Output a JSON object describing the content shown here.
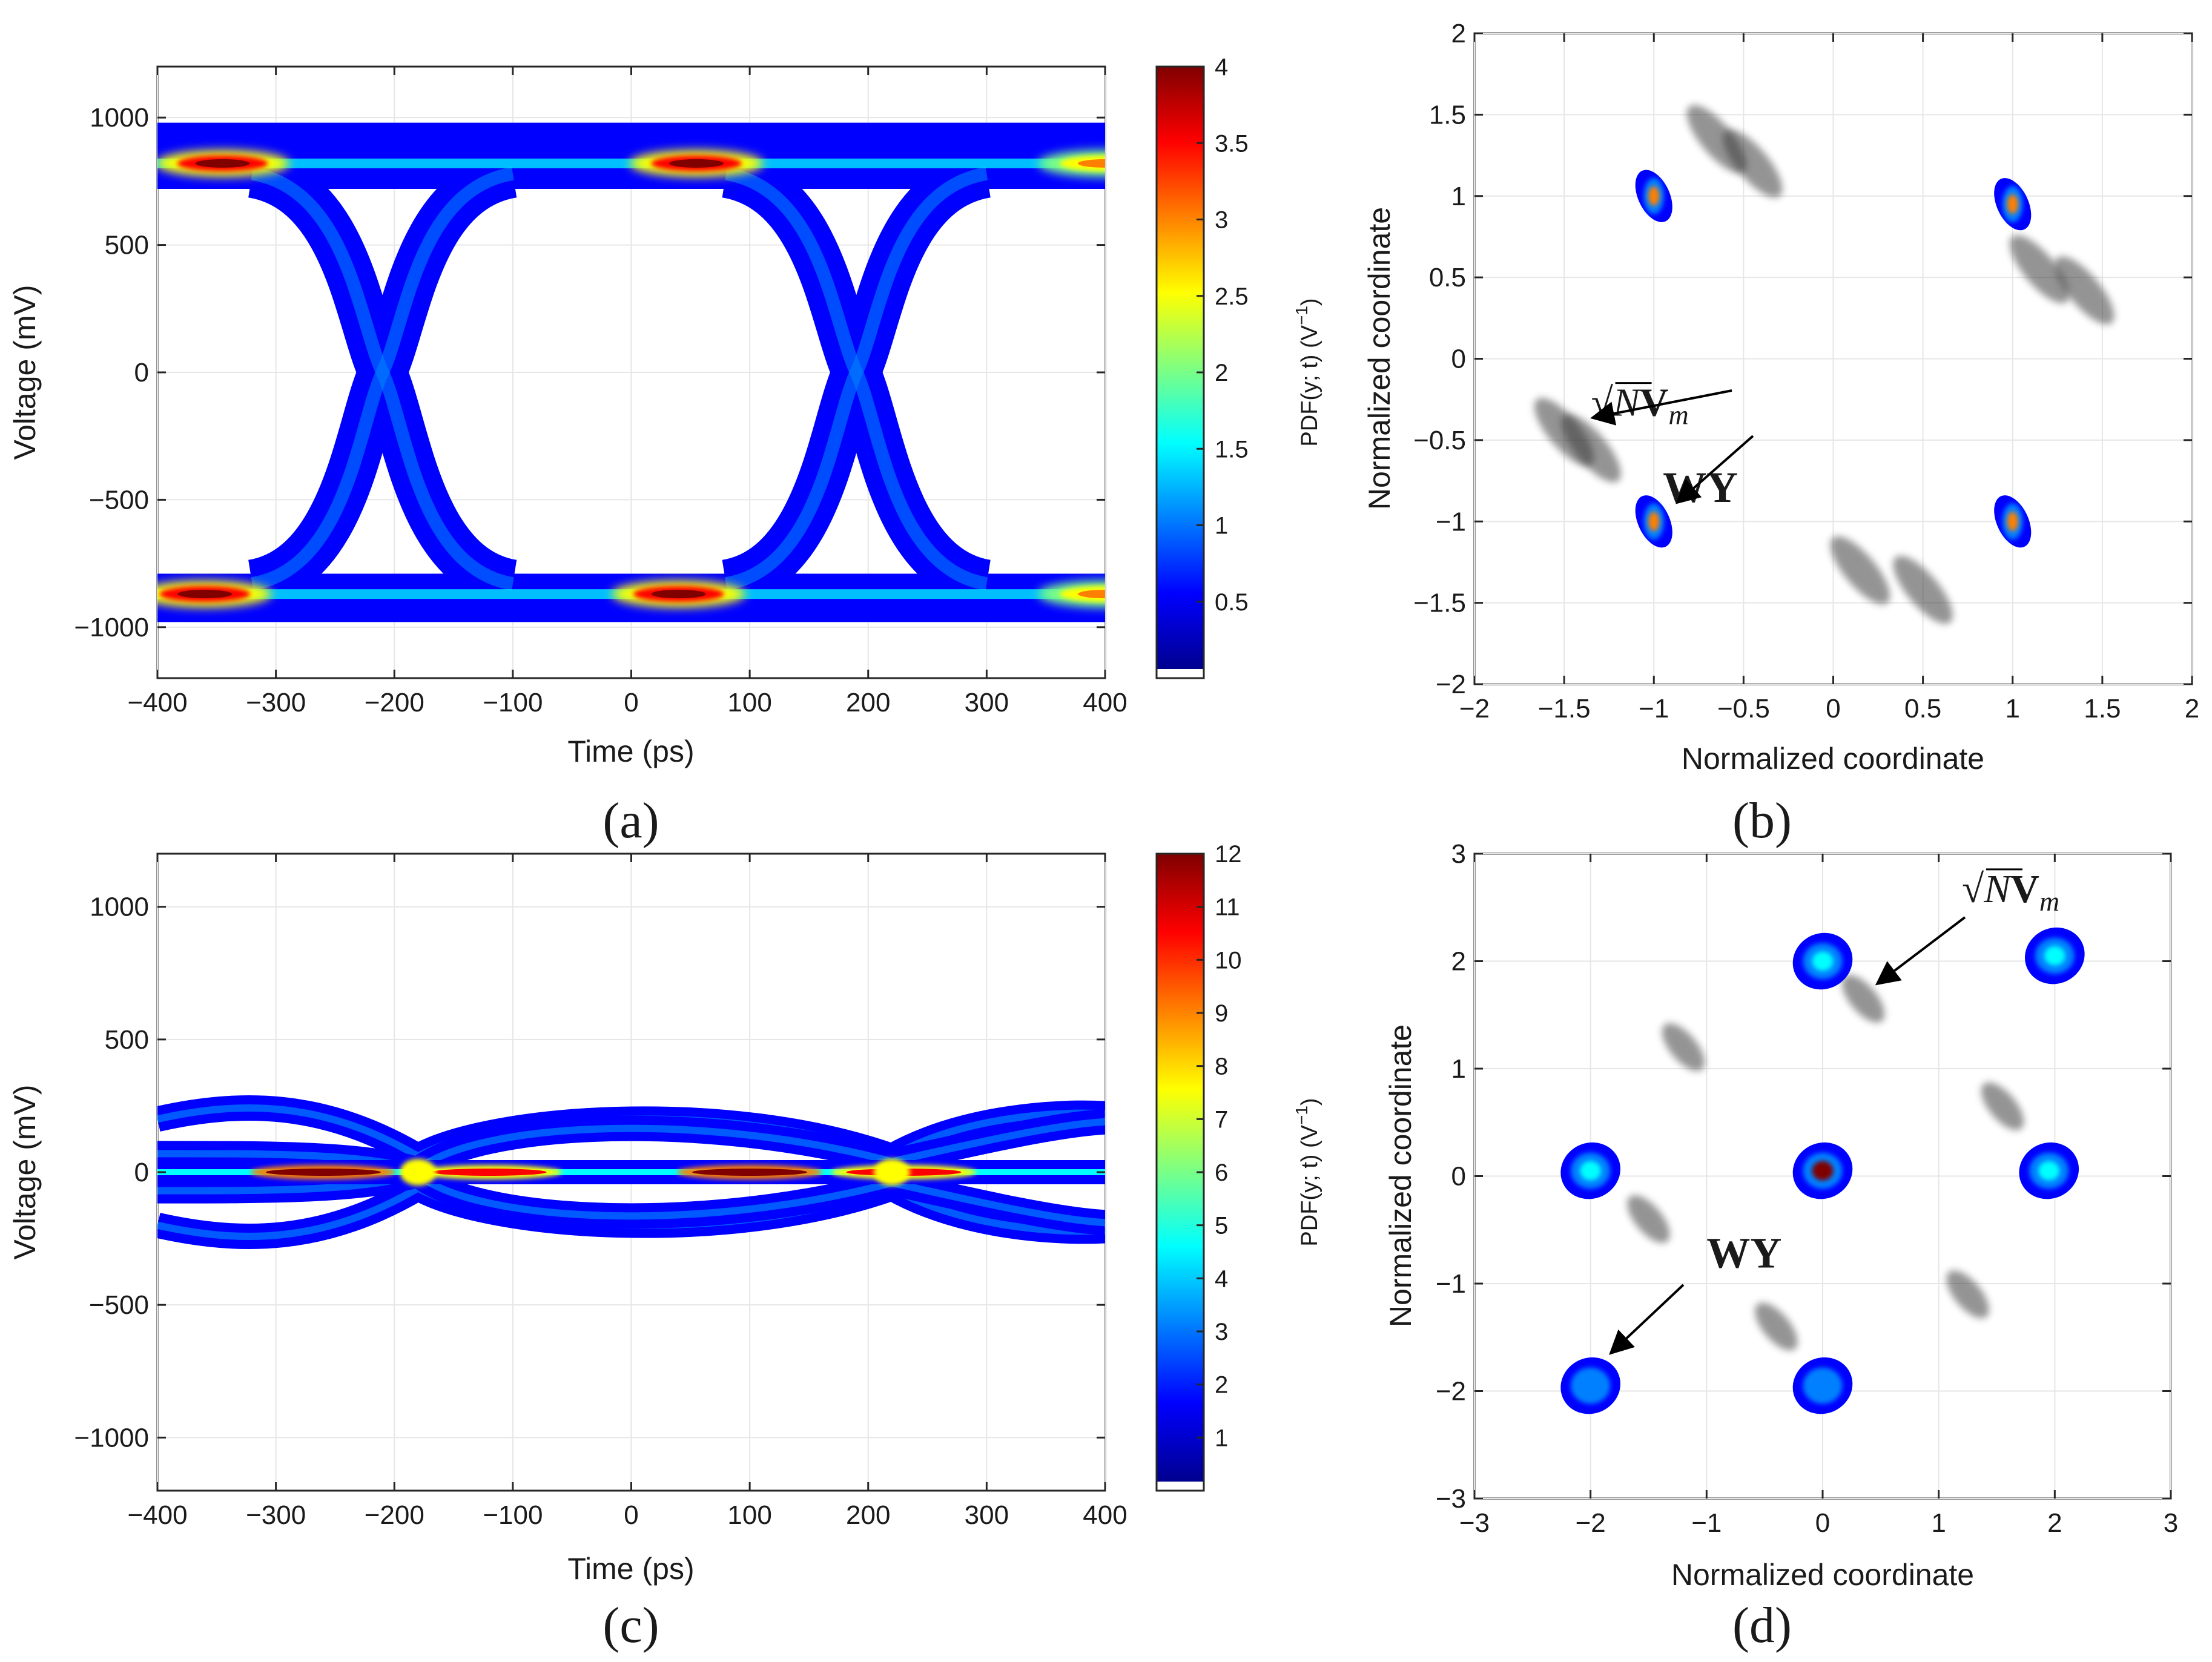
{
  "figure": {
    "captions": [
      "(a)",
      "(b)",
      "(c)",
      "(d)"
    ],
    "colors": {
      "jet": [
        "#00008f",
        "#0000ff",
        "#0080ff",
        "#00ffff",
        "#80ff80",
        "#ffff00",
        "#ff8000",
        "#ff0000",
        "#800000"
      ],
      "trace": "#3c3c3c",
      "grid": "#e6e6e6",
      "axis": "#262626"
    }
  },
  "chart_data": [
    {
      "id": "a",
      "type": "heatmap",
      "subtype": "eye-diagram",
      "title": "",
      "xlabel": "Time (ps)",
      "ylabel": "Voltage (mV)",
      "xlim": [
        -400,
        400
      ],
      "ylim": [
        -1200,
        1200
      ],
      "xticks": [
        -400,
        -300,
        -200,
        -100,
        0,
        100,
        200,
        300,
        400
      ],
      "xtick_labels": [
        "−400",
        "−300",
        "−200",
        "−100",
        "0",
        "100",
        "200",
        "300",
        "400"
      ],
      "yticks": [
        -1000,
        -500,
        0,
        500,
        1000
      ],
      "ytick_labels": [
        "−1000",
        "−500",
        "0",
        "500",
        "1000"
      ],
      "grid": true,
      "levels_mV": [
        820,
        -870
      ],
      "rail_mV": [
        980,
        -980
      ],
      "crossing_times_ps": [
        -210,
        190
      ],
      "colorbar": {
        "label": "PDF(y; t) (V",
        "label_exp": "−1",
        "label_end": ")",
        "range": [
          0,
          4
        ],
        "ticks": [
          0.5,
          1,
          1.5,
          2,
          2.5,
          3,
          3.5,
          4
        ],
        "tick_labels": [
          "0.5",
          "1",
          "1.5",
          "2",
          "2.5",
          "3",
          "3.5",
          "4"
        ]
      },
      "hotspots": [
        {
          "t": -345,
          "v": 820,
          "peak": 4
        },
        {
          "t": 55,
          "v": 820,
          "peak": 4
        },
        {
          "t": -360,
          "v": -870,
          "peak": 4
        },
        {
          "t": 40,
          "v": -870,
          "peak": 4
        },
        {
          "t": 400,
          "v": 820,
          "peak": 3
        },
        {
          "t": 400,
          "v": -870,
          "peak": 3
        }
      ]
    },
    {
      "id": "b",
      "type": "scatter",
      "subtype": "constellation",
      "xlabel": "Normalized coordinate",
      "ylabel": "Normalized coordinate",
      "xlim": [
        -2,
        2
      ],
      "ylim": [
        -2,
        2
      ],
      "xticks": [
        -2,
        -1.5,
        -1,
        -0.5,
        0,
        0.5,
        1,
        1.5,
        2
      ],
      "xtick_labels": [
        "−2",
        "−1.5",
        "−1",
        "−0.5",
        "0",
        "0.5",
        "1",
        "1.5",
        "2"
      ],
      "yticks": [
        -2,
        -1.5,
        -1,
        -0.5,
        0,
        0.5,
        1,
        1.5,
        2
      ],
      "ytick_labels": [
        "−2",
        "−1.5",
        "−1",
        "−0.5",
        "0",
        "0.5",
        "1",
        "1.5",
        "2"
      ],
      "grid": true,
      "clusters_WY": [
        {
          "x": -1.0,
          "y": 1.0
        },
        {
          "x": 1.0,
          "y": 0.95
        },
        {
          "x": -1.0,
          "y": -1.0
        },
        {
          "x": 1.0,
          "y": -1.0
        }
      ],
      "clusters_sqrtN_Vm": [
        {
          "x": -0.65,
          "y": 1.35
        },
        {
          "x": -0.45,
          "y": 1.2
        },
        {
          "x": 1.15,
          "y": 0.55
        },
        {
          "x": 1.4,
          "y": 0.42
        },
        {
          "x": -1.5,
          "y": -0.45
        },
        {
          "x": -1.35,
          "y": -0.55
        },
        {
          "x": 0.15,
          "y": -1.3
        },
        {
          "x": 0.5,
          "y": -1.42
        }
      ],
      "annotations": [
        {
          "label": "√N",
          "label_bold": "V",
          "label_sub": "m",
          "x": -1.35,
          "y": -0.35
        },
        {
          "label": "WY",
          "x": -0.95,
          "y": -0.88
        }
      ]
    },
    {
      "id": "c",
      "type": "heatmap",
      "subtype": "eye-diagram",
      "xlabel": "Time (ps)",
      "ylabel": "Voltage (mV)",
      "xlim": [
        -400,
        400
      ],
      "ylim": [
        -1200,
        1200
      ],
      "xticks": [
        -400,
        -300,
        -200,
        -100,
        0,
        100,
        200,
        300,
        400
      ],
      "xtick_labels": [
        "−400",
        "−300",
        "−200",
        "−100",
        "0",
        "100",
        "200",
        "300",
        "400"
      ],
      "yticks": [
        -1000,
        -500,
        0,
        500,
        1000
      ],
      "ytick_labels": [
        "−1000",
        "−500",
        "0",
        "500",
        "1000"
      ],
      "grid": true,
      "levels_mV": [
        250,
        0,
        -250
      ],
      "crossing_times_ps": [
        -180,
        220
      ],
      "colorbar": {
        "label": "PDF(y; t) (V",
        "label_exp": "−1",
        "label_end": ")",
        "range": [
          0,
          12
        ],
        "ticks": [
          1,
          2,
          3,
          4,
          5,
          6,
          7,
          8,
          9,
          10,
          11,
          12
        ],
        "tick_labels": [
          "1",
          "2",
          "3",
          "4",
          "5",
          "6",
          "7",
          "8",
          "9",
          "10",
          "11",
          "12"
        ]
      },
      "hotspots": [
        {
          "t": -260,
          "v": 0,
          "peak": 12
        },
        {
          "t": -120,
          "v": 0,
          "peak": 10
        },
        {
          "t": 100,
          "v": 0,
          "peak": 12
        },
        {
          "t": 230,
          "v": 0,
          "peak": 10
        }
      ]
    },
    {
      "id": "d",
      "type": "scatter",
      "subtype": "constellation",
      "xlabel": "Normalized coordinate",
      "ylabel": "Normalized coordinate",
      "xlim": [
        -3,
        3
      ],
      "ylim": [
        -3,
        3
      ],
      "xticks": [
        -3,
        -2,
        -1,
        0,
        1,
        2,
        3
      ],
      "xtick_labels": [
        "−3",
        "−2",
        "−1",
        "0",
        "1",
        "2",
        "3"
      ],
      "yticks": [
        -3,
        -2,
        -1,
        0,
        1,
        2,
        3
      ],
      "ytick_labels": [
        "−3",
        "−2",
        "−1",
        "0",
        "1",
        "2",
        "3"
      ],
      "grid": true,
      "clusters_WY": [
        {
          "x": 0.0,
          "y": 2.0,
          "peak": 0.35
        },
        {
          "x": 2.0,
          "y": 2.05,
          "peak": 0.35
        },
        {
          "x": -2.0,
          "y": 0.05,
          "peak": 0.35
        },
        {
          "x": 0.0,
          "y": 0.05,
          "peak": 1.0
        },
        {
          "x": 1.95,
          "y": 0.05,
          "peak": 0.35
        },
        {
          "x": -2.0,
          "y": -1.95,
          "peak": 0.3
        },
        {
          "x": 0.0,
          "y": -1.95,
          "peak": 0.3
        }
      ],
      "clusters_sqrtN_Vm": [
        {
          "x": 0.35,
          "y": 1.65
        },
        {
          "x": -1.2,
          "y": 1.2
        },
        {
          "x": 1.55,
          "y": 0.65
        },
        {
          "x": -1.5,
          "y": -0.4
        },
        {
          "x": 1.25,
          "y": -1.1
        },
        {
          "x": -0.4,
          "y": -1.4
        }
      ],
      "annotations": [
        {
          "label": "√N",
          "label_bold": "V",
          "label_sub": "m",
          "x": 1.2,
          "y": 2.55
        },
        {
          "label": "WY",
          "x": -1.0,
          "y": -0.85
        }
      ]
    }
  ]
}
